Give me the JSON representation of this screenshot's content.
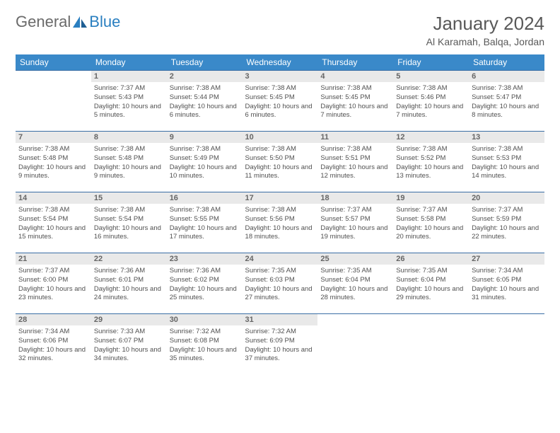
{
  "logo": {
    "text1": "General",
    "text2": "Blue"
  },
  "title": "January 2024",
  "location": "Al Karamah, Balqa, Jordan",
  "colors": {
    "header_bg": "#3a89c9",
    "header_text": "#ffffff",
    "row_border": "#3a6ea5",
    "daynum_bg": "#e9e9e9",
    "daynum_text": "#666666",
    "body_text": "#505050",
    "title_text": "#595959",
    "logo_gray": "#6a6a6a",
    "logo_blue": "#2a7fc0",
    "page_bg": "#ffffff"
  },
  "typography": {
    "title_fontsize": 26,
    "location_fontsize": 14,
    "header_fontsize": 12,
    "daynum_fontsize": 11,
    "body_fontsize": 9.5,
    "logo_fontsize": 22
  },
  "layout": {
    "cols": 7,
    "rows": 5,
    "first_weekday_offset": 1
  },
  "weekdays": [
    "Sunday",
    "Monday",
    "Tuesday",
    "Wednesday",
    "Thursday",
    "Friday",
    "Saturday"
  ],
  "days": [
    {
      "n": 1,
      "sunrise": "7:37 AM",
      "sunset": "5:43 PM",
      "daylight": "10 hours and 5 minutes."
    },
    {
      "n": 2,
      "sunrise": "7:38 AM",
      "sunset": "5:44 PM",
      "daylight": "10 hours and 6 minutes."
    },
    {
      "n": 3,
      "sunrise": "7:38 AM",
      "sunset": "5:45 PM",
      "daylight": "10 hours and 6 minutes."
    },
    {
      "n": 4,
      "sunrise": "7:38 AM",
      "sunset": "5:45 PM",
      "daylight": "10 hours and 7 minutes."
    },
    {
      "n": 5,
      "sunrise": "7:38 AM",
      "sunset": "5:46 PM",
      "daylight": "10 hours and 7 minutes."
    },
    {
      "n": 6,
      "sunrise": "7:38 AM",
      "sunset": "5:47 PM",
      "daylight": "10 hours and 8 minutes."
    },
    {
      "n": 7,
      "sunrise": "7:38 AM",
      "sunset": "5:48 PM",
      "daylight": "10 hours and 9 minutes."
    },
    {
      "n": 8,
      "sunrise": "7:38 AM",
      "sunset": "5:48 PM",
      "daylight": "10 hours and 9 minutes."
    },
    {
      "n": 9,
      "sunrise": "7:38 AM",
      "sunset": "5:49 PM",
      "daylight": "10 hours and 10 minutes."
    },
    {
      "n": 10,
      "sunrise": "7:38 AM",
      "sunset": "5:50 PM",
      "daylight": "10 hours and 11 minutes."
    },
    {
      "n": 11,
      "sunrise": "7:38 AM",
      "sunset": "5:51 PM",
      "daylight": "10 hours and 12 minutes."
    },
    {
      "n": 12,
      "sunrise": "7:38 AM",
      "sunset": "5:52 PM",
      "daylight": "10 hours and 13 minutes."
    },
    {
      "n": 13,
      "sunrise": "7:38 AM",
      "sunset": "5:53 PM",
      "daylight": "10 hours and 14 minutes."
    },
    {
      "n": 14,
      "sunrise": "7:38 AM",
      "sunset": "5:54 PM",
      "daylight": "10 hours and 15 minutes."
    },
    {
      "n": 15,
      "sunrise": "7:38 AM",
      "sunset": "5:54 PM",
      "daylight": "10 hours and 16 minutes."
    },
    {
      "n": 16,
      "sunrise": "7:38 AM",
      "sunset": "5:55 PM",
      "daylight": "10 hours and 17 minutes."
    },
    {
      "n": 17,
      "sunrise": "7:38 AM",
      "sunset": "5:56 PM",
      "daylight": "10 hours and 18 minutes."
    },
    {
      "n": 18,
      "sunrise": "7:37 AM",
      "sunset": "5:57 PM",
      "daylight": "10 hours and 19 minutes."
    },
    {
      "n": 19,
      "sunrise": "7:37 AM",
      "sunset": "5:58 PM",
      "daylight": "10 hours and 20 minutes."
    },
    {
      "n": 20,
      "sunrise": "7:37 AM",
      "sunset": "5:59 PM",
      "daylight": "10 hours and 22 minutes."
    },
    {
      "n": 21,
      "sunrise": "7:37 AM",
      "sunset": "6:00 PM",
      "daylight": "10 hours and 23 minutes."
    },
    {
      "n": 22,
      "sunrise": "7:36 AM",
      "sunset": "6:01 PM",
      "daylight": "10 hours and 24 minutes."
    },
    {
      "n": 23,
      "sunrise": "7:36 AM",
      "sunset": "6:02 PM",
      "daylight": "10 hours and 25 minutes."
    },
    {
      "n": 24,
      "sunrise": "7:35 AM",
      "sunset": "6:03 PM",
      "daylight": "10 hours and 27 minutes."
    },
    {
      "n": 25,
      "sunrise": "7:35 AM",
      "sunset": "6:04 PM",
      "daylight": "10 hours and 28 minutes."
    },
    {
      "n": 26,
      "sunrise": "7:35 AM",
      "sunset": "6:04 PM",
      "daylight": "10 hours and 29 minutes."
    },
    {
      "n": 27,
      "sunrise": "7:34 AM",
      "sunset": "6:05 PM",
      "daylight": "10 hours and 31 minutes."
    },
    {
      "n": 28,
      "sunrise": "7:34 AM",
      "sunset": "6:06 PM",
      "daylight": "10 hours and 32 minutes."
    },
    {
      "n": 29,
      "sunrise": "7:33 AM",
      "sunset": "6:07 PM",
      "daylight": "10 hours and 34 minutes."
    },
    {
      "n": 30,
      "sunrise": "7:32 AM",
      "sunset": "6:08 PM",
      "daylight": "10 hours and 35 minutes."
    },
    {
      "n": 31,
      "sunrise": "7:32 AM",
      "sunset": "6:09 PM",
      "daylight": "10 hours and 37 minutes."
    }
  ],
  "labels": {
    "sunrise": "Sunrise:",
    "sunset": "Sunset:",
    "daylight": "Daylight:"
  }
}
